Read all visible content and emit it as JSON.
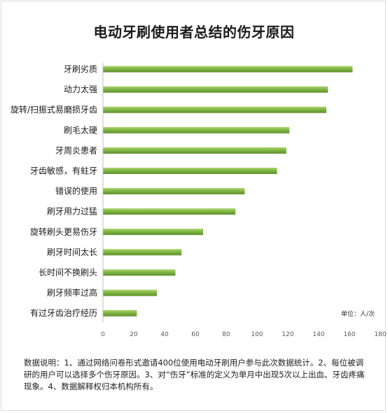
{
  "chart_data": {
    "type": "bar",
    "orientation": "horizontal",
    "title": "电动牙刷使用者总结的伤牙原因",
    "categories": [
      "牙刷劣质",
      "动力太强",
      "旋转/扫振式易磨损牙齿",
      "刷毛太硬",
      "牙周炎患者",
      "牙齿敏感，有蛀牙",
      "错误的使用",
      "刷牙用力过猛",
      "旋转刷头更易伤牙",
      "刷牙时间太长",
      "长时间不换刷头",
      "刷牙频率过高",
      "有过牙齿治疗经历"
    ],
    "values": [
      162,
      146,
      145,
      121,
      119,
      113,
      92,
      86,
      65,
      51,
      47,
      35,
      22
    ],
    "xlim": [
      0,
      180
    ],
    "xticks": [
      0,
      20,
      40,
      60,
      80,
      100,
      120,
      140,
      160,
      180
    ],
    "unit_label": "单位：人/次",
    "grid": false,
    "bar_color": "#7cb342"
  },
  "note": "数据说明：1、通过网络问卷形式邀请400位使用电动牙刷用户参与此次数据统计。2、每位被调研的用户可以选择多个伤牙原因。3、对“伤牙”标准的定义为单月中出现5次以上出血、牙齿疼痛现象。4、数据解释权归本机构所有。"
}
